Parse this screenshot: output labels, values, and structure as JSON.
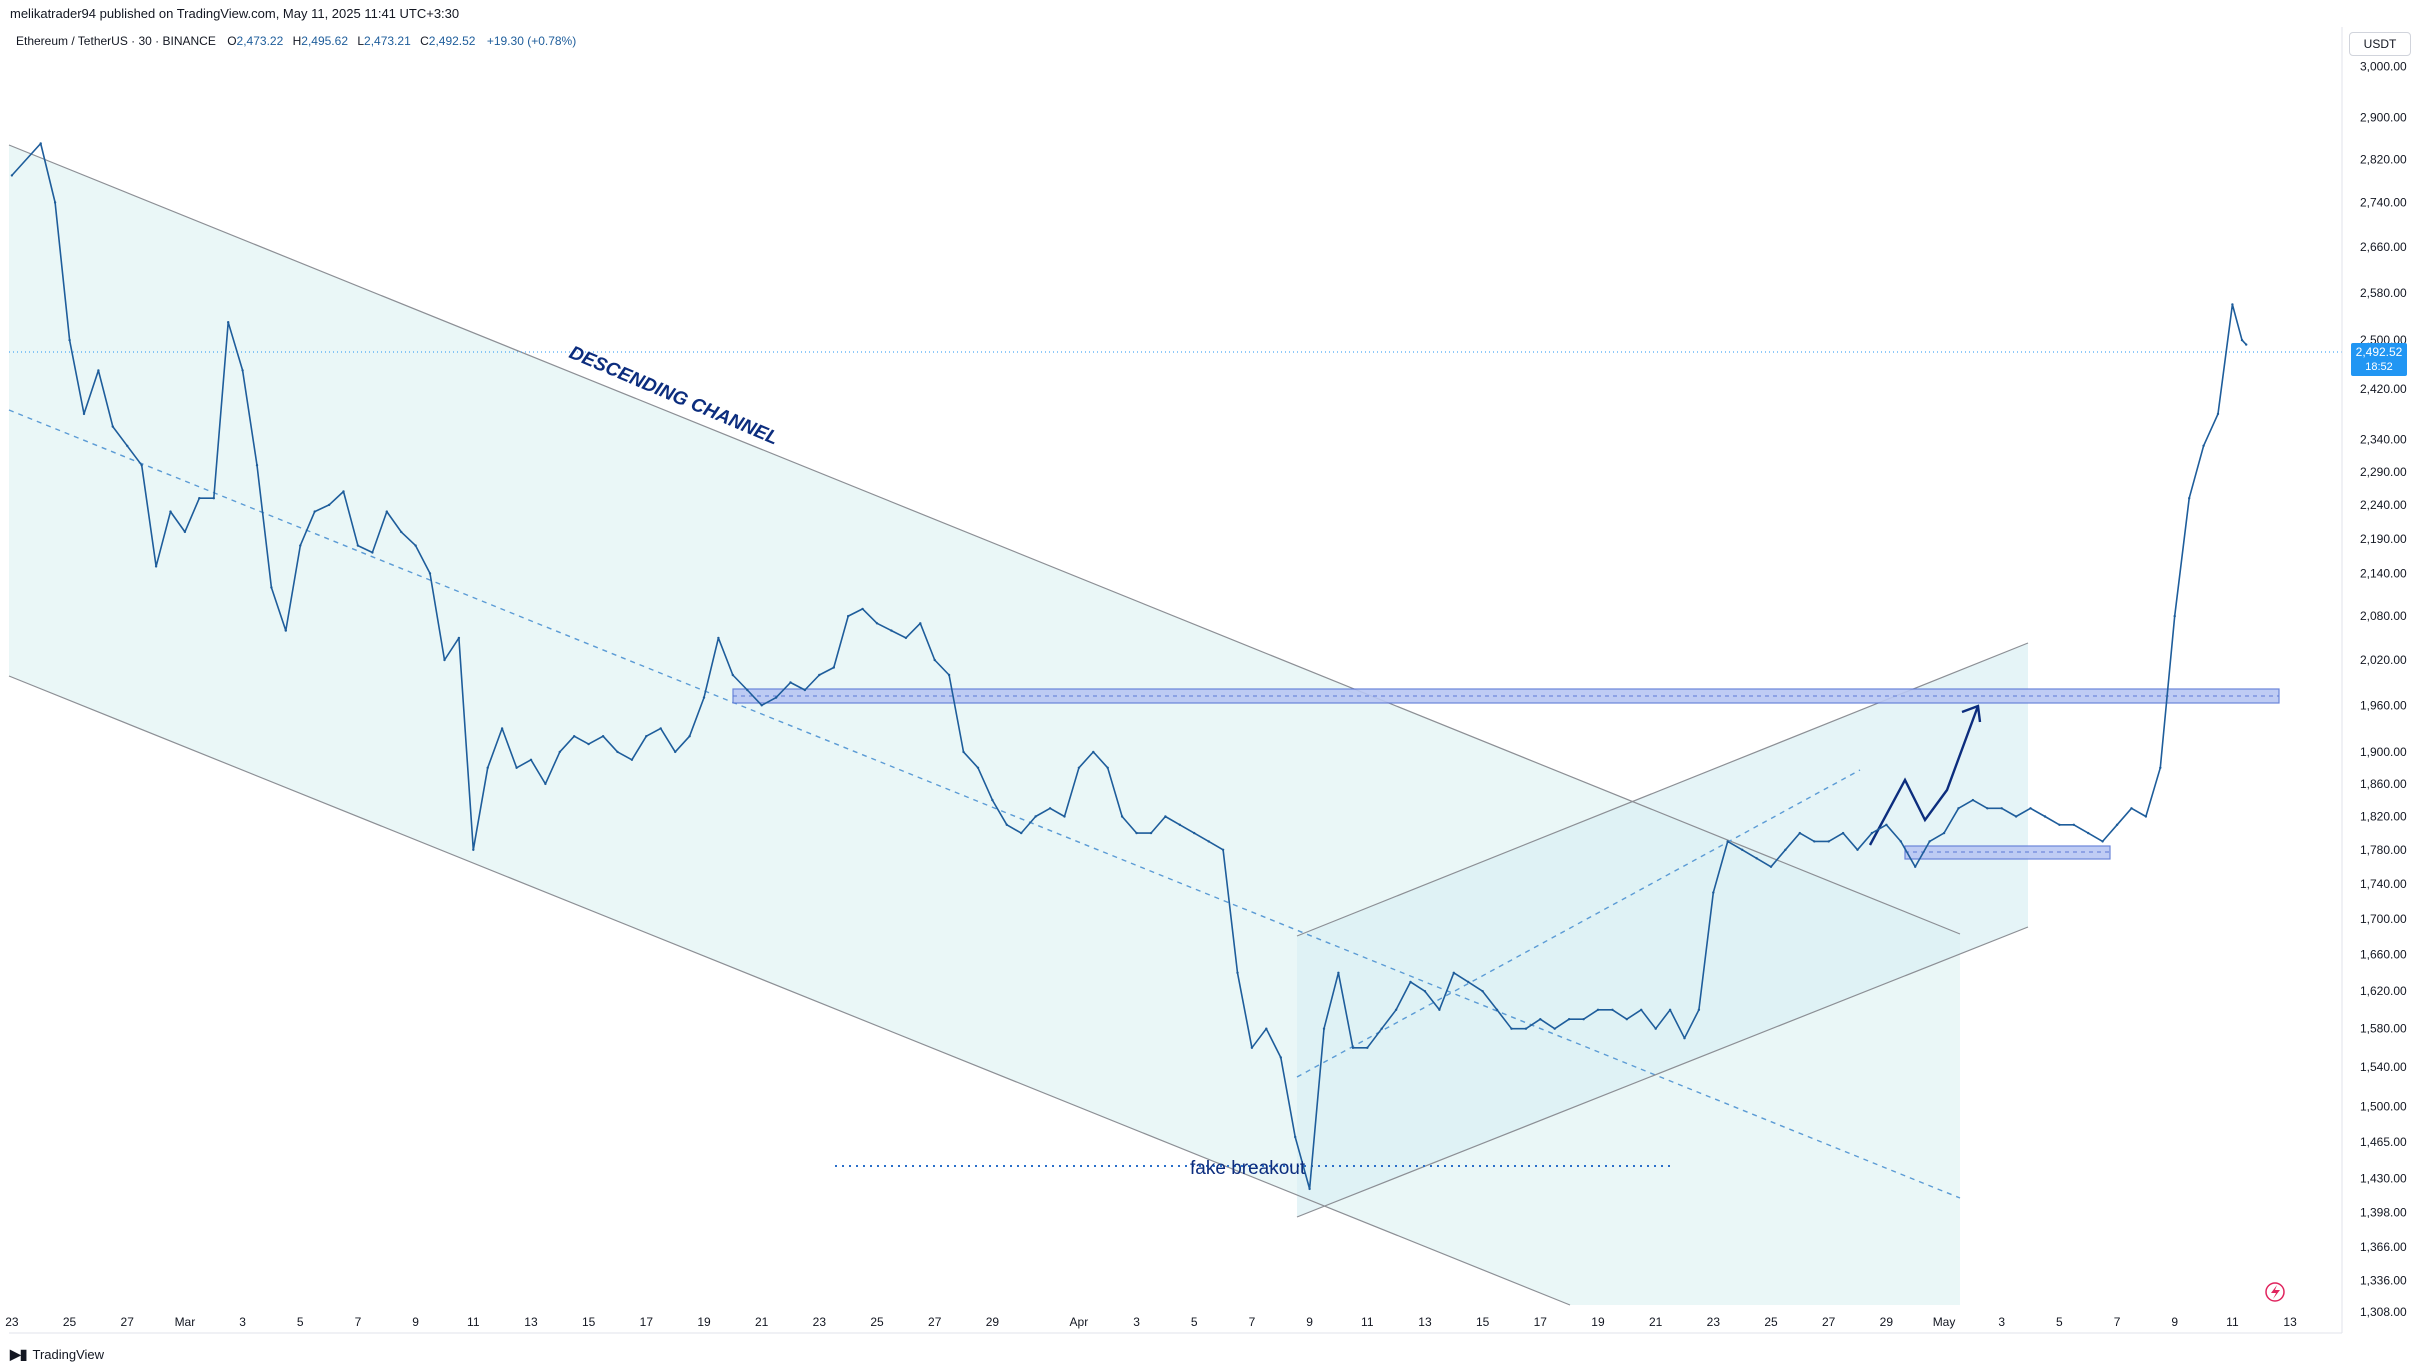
{
  "header": {
    "publisher": "melikatrader94 published on TradingView.com, May 11, 2025 11:41 UTC+3:30"
  },
  "legend": {
    "symbol": "Ethereum / TetherUS · 30 · BINANCE",
    "ohlc": [
      {
        "label": "O",
        "value": "2,473.22"
      },
      {
        "label": "H",
        "value": "2,495.62"
      },
      {
        "label": "L",
        "value": "2,473.21"
      },
      {
        "label": "C",
        "value": "2,492.52"
      }
    ],
    "change": "+19.30 (+0.78%)"
  },
  "price_axis": {
    "currency": "USDT",
    "current_price": "2,492.52",
    "countdown": "18:52"
  },
  "footer": {
    "brand": "TradingView"
  },
  "colors": {
    "candle": "#1e5d9b",
    "channel_fill": "#e6f6f6",
    "zone_fill": "#b9c7f3",
    "zone_border": "#5c78d6",
    "dotted_blue": "#5b9bd5",
    "annotation": "#0c2d7e",
    "price_tag": "#2196f3"
  },
  "annotations": {
    "channel_label": "DESCENDING CHANNEL",
    "fake_breakout": "fake breakout"
  },
  "chart_data": {
    "type": "line",
    "title": "",
    "symbol": "ETH/USDT",
    "interval": "30",
    "exchange": "BINANCE",
    "y_scale": "log",
    "ylim": [
      1290,
      3080
    ],
    "y_ticks": [
      3000,
      2900,
      2820,
      2740,
      2660,
      2580,
      2500,
      2420,
      2340,
      2290,
      2240,
      2190,
      2140,
      2080,
      2020,
      1960,
      1900,
      1860,
      1820,
      1780,
      1740,
      1700,
      1660,
      1620,
      1580,
      1540,
      1500,
      1465,
      1430,
      1398,
      1366,
      1336,
      1308
    ],
    "y_tick_labels": [
      "3,000.00",
      "2,900.00",
      "2,820.00",
      "2,740.00",
      "2,660.00",
      "2,580.00",
      "2,500.00",
      "2,420.00",
      "2,340.00",
      "2,290.00",
      "2,240.00",
      "2,190.00",
      "2,140.00",
      "2,080.00",
      "2,020.00",
      "1,960.00",
      "1,900.00",
      "1,860.00",
      "1,820.00",
      "1,780.00",
      "1,740.00",
      "1,700.00",
      "1,660.00",
      "1,620.00",
      "1,580.00",
      "1,540.00",
      "1,500.00",
      "1,465.00",
      "1,430.00",
      "1,398.00",
      "1,366.00",
      "1,336.00",
      "1,308.00"
    ],
    "x_axis": {
      "dates": [
        "2025-02-23",
        "2025-02-25",
        "2025-02-27",
        "2025-03-01",
        "2025-03-03",
        "2025-03-05",
        "2025-03-07",
        "2025-03-09",
        "2025-03-11",
        "2025-03-13",
        "2025-03-15",
        "2025-03-17",
        "2025-03-19",
        "2025-03-21",
        "2025-03-23",
        "2025-03-25",
        "2025-03-27",
        "2025-03-29",
        "2025-04-01",
        "2025-04-03",
        "2025-04-05",
        "2025-04-07",
        "2025-04-09",
        "2025-04-11",
        "2025-04-13",
        "2025-04-15",
        "2025-04-17",
        "2025-04-19",
        "2025-04-21",
        "2025-04-23",
        "2025-04-25",
        "2025-04-27",
        "2025-04-29",
        "2025-05-01",
        "2025-05-03",
        "2025-05-05",
        "2025-05-07",
        "2025-05-09",
        "2025-05-11",
        "2025-05-13"
      ],
      "tick_labels": [
        "23",
        "25",
        "27",
        "Mar",
        "3",
        "5",
        "7",
        "9",
        "11",
        "13",
        "15",
        "17",
        "19",
        "21",
        "23",
        "25",
        "27",
        "29",
        "Apr",
        "3",
        "5",
        "7",
        "9",
        "11",
        "13",
        "15",
        "17",
        "19",
        "21",
        "23",
        "25",
        "27",
        "29",
        "May",
        "3",
        "5",
        "7",
        "9",
        "11",
        "13"
      ]
    },
    "series": [
      {
        "values": [
          {
            "x": "2025-02-23",
            "y": 2790
          },
          {
            "x": "2025-02-24",
            "y": 2850
          },
          {
            "x": "2025-02-24T12:00",
            "y": 2740
          },
          {
            "x": "2025-02-25",
            "y": 2500
          },
          {
            "x": "2025-02-25T12:00",
            "y": 2380
          },
          {
            "x": "2025-02-26",
            "y": 2450
          },
          {
            "x": "2025-02-26T12:00",
            "y": 2360
          },
          {
            "x": "2025-02-27",
            "y": 2330
          },
          {
            "x": "2025-02-27T12:00",
            "y": 2300
          },
          {
            "x": "2025-02-28",
            "y": 2150
          },
          {
            "x": "2025-02-28T12:00",
            "y": 2230
          },
          {
            "x": "2025-03-01",
            "y": 2200
          },
          {
            "x": "2025-03-01T12:00",
            "y": 2250
          },
          {
            "x": "2025-03-02",
            "y": 2250
          },
          {
            "x": "2025-03-02T12:00",
            "y": 2530
          },
          {
            "x": "2025-03-03",
            "y": 2450
          },
          {
            "x": "2025-03-03T12:00",
            "y": 2300
          },
          {
            "x": "2025-03-04",
            "y": 2120
          },
          {
            "x": "2025-03-04T12:00",
            "y": 2060
          },
          {
            "x": "2025-03-05",
            "y": 2180
          },
          {
            "x": "2025-03-05T12:00",
            "y": 2230
          },
          {
            "x": "2025-03-06",
            "y": 2240
          },
          {
            "x": "2025-03-06T12:00",
            "y": 2260
          },
          {
            "x": "2025-03-07",
            "y": 2180
          },
          {
            "x": "2025-03-07T12:00",
            "y": 2170
          },
          {
            "x": "2025-03-08",
            "y": 2230
          },
          {
            "x": "2025-03-08T12:00",
            "y": 2200
          },
          {
            "x": "2025-03-09",
            "y": 2180
          },
          {
            "x": "2025-03-09T12:00",
            "y": 2140
          },
          {
            "x": "2025-03-10",
            "y": 2020
          },
          {
            "x": "2025-03-10T12:00",
            "y": 2050
          },
          {
            "x": "2025-03-11",
            "y": 1780
          },
          {
            "x": "2025-03-11T12:00",
            "y": 1880
          },
          {
            "x": "2025-03-12",
            "y": 1930
          },
          {
            "x": "2025-03-12T12:00",
            "y": 1880
          },
          {
            "x": "2025-03-13",
            "y": 1890
          },
          {
            "x": "2025-03-13T12:00",
            "y": 1860
          },
          {
            "x": "2025-03-14",
            "y": 1900
          },
          {
            "x": "2025-03-14T12:00",
            "y": 1920
          },
          {
            "x": "2025-03-15",
            "y": 1910
          },
          {
            "x": "2025-03-15T12:00",
            "y": 1920
          },
          {
            "x": "2025-03-16",
            "y": 1900
          },
          {
            "x": "2025-03-16T12:00",
            "y": 1890
          },
          {
            "x": "2025-03-17",
            "y": 1920
          },
          {
            "x": "2025-03-17T12:00",
            "y": 1930
          },
          {
            "x": "2025-03-18",
            "y": 1900
          },
          {
            "x": "2025-03-18T12:00",
            "y": 1920
          },
          {
            "x": "2025-03-19",
            "y": 1970
          },
          {
            "x": "2025-03-19T12:00",
            "y": 2050
          },
          {
            "x": "2025-03-20",
            "y": 2000
          },
          {
            "x": "2025-03-20T12:00",
            "y": 1980
          },
          {
            "x": "2025-03-21",
            "y": 1960
          },
          {
            "x": "2025-03-21T12:00",
            "y": 1970
          },
          {
            "x": "2025-03-22",
            "y": 1990
          },
          {
            "x": "2025-03-22T12:00",
            "y": 1980
          },
          {
            "x": "2025-03-23",
            "y": 2000
          },
          {
            "x": "2025-03-23T12:00",
            "y": 2010
          },
          {
            "x": "2025-03-24",
            "y": 2080
          },
          {
            "x": "2025-03-24T12:00",
            "y": 2090
          },
          {
            "x": "2025-03-25",
            "y": 2070
          },
          {
            "x": "2025-03-25T12:00",
            "y": 2060
          },
          {
            "x": "2025-03-26",
            "y": 2050
          },
          {
            "x": "2025-03-26T12:00",
            "y": 2070
          },
          {
            "x": "2025-03-27",
            "y": 2020
          },
          {
            "x": "2025-03-27T12:00",
            "y": 2000
          },
          {
            "x": "2025-03-28",
            "y": 1900
          },
          {
            "x": "2025-03-28T12:00",
            "y": 1880
          },
          {
            "x": "2025-03-29",
            "y": 1840
          },
          {
            "x": "2025-03-29T12:00",
            "y": 1810
          },
          {
            "x": "2025-03-30",
            "y": 1800
          },
          {
            "x": "2025-03-30T12:00",
            "y": 1820
          },
          {
            "x": "2025-03-31",
            "y": 1830
          },
          {
            "x": "2025-03-31T12:00",
            "y": 1820
          },
          {
            "x": "2025-04-01",
            "y": 1880
          },
          {
            "x": "2025-04-01T12:00",
            "y": 1900
          },
          {
            "x": "2025-04-02",
            "y": 1880
          },
          {
            "x": "2025-04-02T12:00",
            "y": 1820
          },
          {
            "x": "2025-04-03",
            "y": 1800
          },
          {
            "x": "2025-04-03T12:00",
            "y": 1800
          },
          {
            "x": "2025-04-04",
            "y": 1820
          },
          {
            "x": "2025-04-04T12:00",
            "y": 1810
          },
          {
            "x": "2025-04-05",
            "y": 1800
          },
          {
            "x": "2025-04-05T12:00",
            "y": 1790
          },
          {
            "x": "2025-04-06",
            "y": 1780
          },
          {
            "x": "2025-04-06T12:00",
            "y": 1640
          },
          {
            "x": "2025-04-07",
            "y": 1560
          },
          {
            "x": "2025-04-07T12:00",
            "y": 1580
          },
          {
            "x": "2025-04-08",
            "y": 1550
          },
          {
            "x": "2025-04-08T12:00",
            "y": 1470
          },
          {
            "x": "2025-04-09",
            "y": 1420
          },
          {
            "x": "2025-04-09T12:00",
            "y": 1580
          },
          {
            "x": "2025-04-10",
            "y": 1640
          },
          {
            "x": "2025-04-10T12:00",
            "y": 1560
          },
          {
            "x": "2025-04-11",
            "y": 1560
          },
          {
            "x": "2025-04-11T12:00",
            "y": 1580
          },
          {
            "x": "2025-04-12",
            "y": 1600
          },
          {
            "x": "2025-04-12T12:00",
            "y": 1630
          },
          {
            "x": "2025-04-13",
            "y": 1620
          },
          {
            "x": "2025-04-13T12:00",
            "y": 1600
          },
          {
            "x": "2025-04-14",
            "y": 1640
          },
          {
            "x": "2025-04-14T12:00",
            "y": 1630
          },
          {
            "x": "2025-04-15",
            "y": 1620
          },
          {
            "x": "2025-04-15T12:00",
            "y": 1600
          },
          {
            "x": "2025-04-16",
            "y": 1580
          },
          {
            "x": "2025-04-16T12:00",
            "y": 1580
          },
          {
            "x": "2025-04-17",
            "y": 1590
          },
          {
            "x": "2025-04-17T12:00",
            "y": 1580
          },
          {
            "x": "2025-04-18",
            "y": 1590
          },
          {
            "x": "2025-04-18T12:00",
            "y": 1590
          },
          {
            "x": "2025-04-19",
            "y": 1600
          },
          {
            "x": "2025-04-19T12:00",
            "y": 1600
          },
          {
            "x": "2025-04-20",
            "y": 1590
          },
          {
            "x": "2025-04-20T12:00",
            "y": 1600
          },
          {
            "x": "2025-04-21",
            "y": 1580
          },
          {
            "x": "2025-04-21T12:00",
            "y": 1600
          },
          {
            "x": "2025-04-22",
            "y": 1570
          },
          {
            "x": "2025-04-22T12:00",
            "y": 1600
          },
          {
            "x": "2025-04-23",
            "y": 1730
          },
          {
            "x": "2025-04-23T12:00",
            "y": 1790
          },
          {
            "x": "2025-04-24",
            "y": 1780
          },
          {
            "x": "2025-04-24T12:00",
            "y": 1770
          },
          {
            "x": "2025-04-25",
            "y": 1760
          },
          {
            "x": "2025-04-25T12:00",
            "y": 1780
          },
          {
            "x": "2025-04-26",
            "y": 1800
          },
          {
            "x": "2025-04-26T12:00",
            "y": 1790
          },
          {
            "x": "2025-04-27",
            "y": 1790
          },
          {
            "x": "2025-04-27T12:00",
            "y": 1800
          },
          {
            "x": "2025-04-28",
            "y": 1780
          },
          {
            "x": "2025-04-28T12:00",
            "y": 1800
          },
          {
            "x": "2025-04-29",
            "y": 1810
          },
          {
            "x": "2025-04-29T12:00",
            "y": 1790
          },
          {
            "x": "2025-04-30",
            "y": 1760
          },
          {
            "x": "2025-04-30T12:00",
            "y": 1790
          },
          {
            "x": "2025-05-01",
            "y": 1800
          },
          {
            "x": "2025-05-01T12:00",
            "y": 1830
          },
          {
            "x": "2025-05-02",
            "y": 1840
          },
          {
            "x": "2025-05-02T12:00",
            "y": 1830
          },
          {
            "x": "2025-05-03",
            "y": 1830
          },
          {
            "x": "2025-05-03T12:00",
            "y": 1820
          },
          {
            "x": "2025-05-04",
            "y": 1830
          },
          {
            "x": "2025-05-04T12:00",
            "y": 1820
          },
          {
            "x": "2025-05-05",
            "y": 1810
          },
          {
            "x": "2025-05-05T12:00",
            "y": 1810
          },
          {
            "x": "2025-05-06",
            "y": 1800
          },
          {
            "x": "2025-05-06T12:00",
            "y": 1790
          },
          {
            "x": "2025-05-07",
            "y": 1810
          },
          {
            "x": "2025-05-07T12:00",
            "y": 1830
          },
          {
            "x": "2025-05-08",
            "y": 1820
          },
          {
            "x": "2025-05-08T12:00",
            "y": 1880
          },
          {
            "x": "2025-05-09",
            "y": 2080
          },
          {
            "x": "2025-05-09T12:00",
            "y": 2250
          },
          {
            "x": "2025-05-10",
            "y": 2330
          },
          {
            "x": "2025-05-10T12:00",
            "y": 2380
          },
          {
            "x": "2025-05-11",
            "y": 2560
          },
          {
            "x": "2025-05-11T08:00",
            "y": 2500
          },
          {
            "x": "2025-05-11T11:30",
            "y": 2492.52
          }
        ]
      }
    ],
    "current_price": 2492.52,
    "horizontal_zones": [
      {
        "x_from": "2025-03-19",
        "x_to": "2025-05-11",
        "y_low": 1948,
        "y_high": 1972
      },
      {
        "x_from": "2025-04-29",
        "x_to": "2025-05-06",
        "y_low": 1772,
        "y_high": 1788
      }
    ],
    "annotations": [
      {
        "text": "DESCENDING CHANNEL",
        "kind": "channel_label"
      },
      {
        "text": "fake breakout",
        "kind": "text",
        "date": "2025-04-08",
        "y": 1420
      }
    ]
  }
}
